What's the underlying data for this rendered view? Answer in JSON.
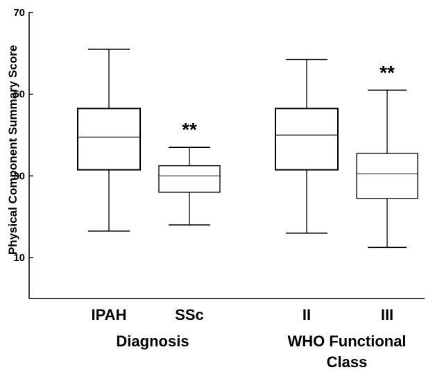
{
  "chart_data": {
    "type": "box",
    "ylabel": "Physical Component Summary Score",
    "ylim": [
      0,
      70
    ],
    "yticks": [
      10,
      30,
      50,
      70
    ],
    "grid": false,
    "categories": [
      "IPAH",
      "SSc",
      "II",
      "III"
    ],
    "groups": [
      {
        "label": "Diagnosis",
        "members": [
          "IPAH",
          "SSc"
        ]
      },
      {
        "label": "WHO Functional Class",
        "members": [
          "II",
          "III"
        ]
      }
    ],
    "boxes": [
      {
        "category": "IPAH",
        "min": 16.5,
        "q1": 31.5,
        "median": 39.5,
        "q3": 46.5,
        "max": 61.0,
        "annotation": ""
      },
      {
        "category": "SSc",
        "min": 18.0,
        "q1": 26.0,
        "median": 30.0,
        "q3": 32.5,
        "max": 37.0,
        "annotation": "**"
      },
      {
        "category": "II",
        "min": 16.0,
        "q1": 31.5,
        "median": 40.0,
        "q3": 46.5,
        "max": 58.5,
        "annotation": ""
      },
      {
        "category": "III",
        "min": 12.5,
        "q1": 24.5,
        "median": 30.5,
        "q3": 35.5,
        "max": 51.0,
        "annotation": "**"
      }
    ]
  }
}
